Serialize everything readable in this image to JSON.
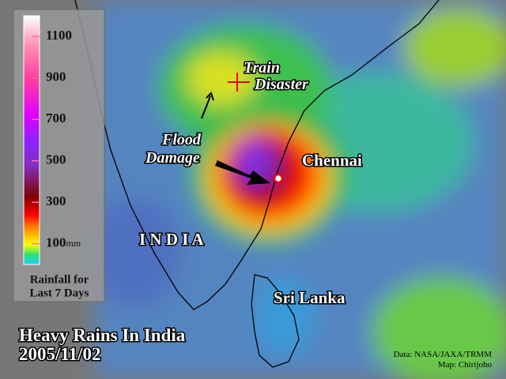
{
  "title": "Heavy Rains In India",
  "date": "2005/11/02",
  "legend": {
    "title_line1": "Rainfall for",
    "title_line2": "Last 7 Days",
    "unit": "mm",
    "range": [
      0,
      1200
    ],
    "ticks": [
      100,
      300,
      500,
      700,
      900,
      1100
    ]
  },
  "annotations": {
    "train_line1": "Train",
    "train_line2": "Disaster",
    "flood_line1": "Flood",
    "flood_line2": "Damage",
    "chennai": "Chennai",
    "india": "I N D I A",
    "sri_lanka": "Sri Lanka"
  },
  "credits": {
    "data": "Data: NASA/JAXA/TRMM",
    "map": "Map: Chirijoho"
  }
}
